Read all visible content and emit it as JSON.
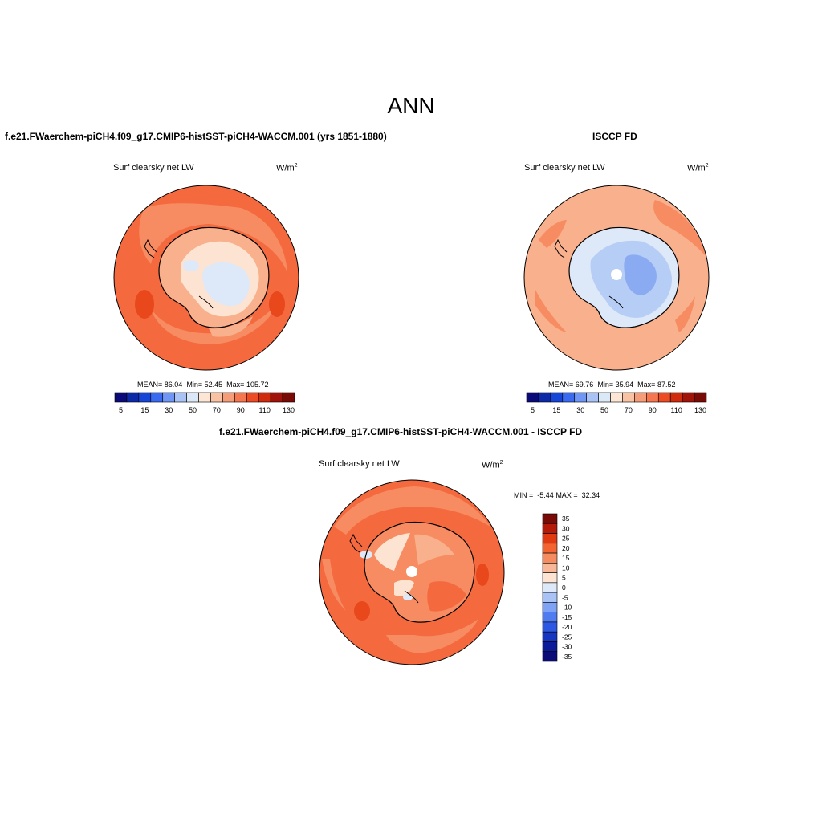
{
  "title": "ANN",
  "panels": {
    "model": {
      "title": "f.e21.FWaerchem-piCH4.f09_g17.CMIP6-histSST-piCH4-WACCM.001 (yrs 1851-1880)",
      "variable": "Surf clearsky net LW",
      "units_base": "W/m",
      "units_exp": "2",
      "mean_label": "MEAN=",
      "mean": "86.04",
      "min_label": "Min=",
      "min": "52.45",
      "max_label": "Max=",
      "max": "105.72"
    },
    "obs": {
      "title": "ISCCP FD",
      "variable": "Surf clearsky net LW",
      "units_base": "W/m",
      "units_exp": "2",
      "mean_label": "MEAN=",
      "mean": "69.76",
      "min_label": "Min=",
      "min": "35.94",
      "max_label": "Max=",
      "max": "87.52"
    },
    "diff": {
      "title": "f.e21.FWaerchem-piCH4.f09_g17.CMIP6-histSST-piCH4-WACCM.001 - ISCCP FD",
      "variable": "Surf clearsky net LW",
      "units_base": "W/m",
      "units_exp": "2",
      "min_label": "MIN =",
      "min": "-5.44",
      "max_label": "MAX =",
      "max": "32.34"
    }
  },
  "colorbar_abs": {
    "colors": [
      "#0a0a78",
      "#0c2aa8",
      "#1646d8",
      "#3a6af0",
      "#6f96f4",
      "#a9c3f6",
      "#dbe8f8",
      "#fde7d4",
      "#f9c2a2",
      "#f59c78",
      "#f5764f",
      "#ec4b24",
      "#cf2b0c",
      "#a11208",
      "#7a0a06"
    ],
    "tick_labels": [
      "5",
      "15",
      "30",
      "50",
      "70",
      "90",
      "110",
      "130"
    ]
  },
  "colorbar_diff": {
    "colors": [
      "#7a0a06",
      "#b51a08",
      "#e23a10",
      "#f46430",
      "#f58c60",
      "#f8b898",
      "#fde4d2",
      "#dde8f8",
      "#a9c3f6",
      "#7ea2f4",
      "#4f7cf0",
      "#2c58e4",
      "#1436c0",
      "#0a1a98",
      "#0a0a78"
    ],
    "tick_labels": [
      "35",
      "30",
      "25",
      "20",
      "15",
      "10",
      "5",
      "0",
      "-5",
      "-10",
      "-15",
      "-20",
      "-25",
      "-30",
      "-35"
    ]
  },
  "map_colors": {
    "ocean_high": "#f46a3e",
    "ocean_mid": "#f78c62",
    "ocean_light": "#f9b08c",
    "ice_pale": "#fde4d2",
    "ice_very_pale": "#dde8f8",
    "blue_light": "#b6cdf6",
    "blue_mid": "#8aaaf2",
    "dark_patch": "#e8481c"
  }
}
